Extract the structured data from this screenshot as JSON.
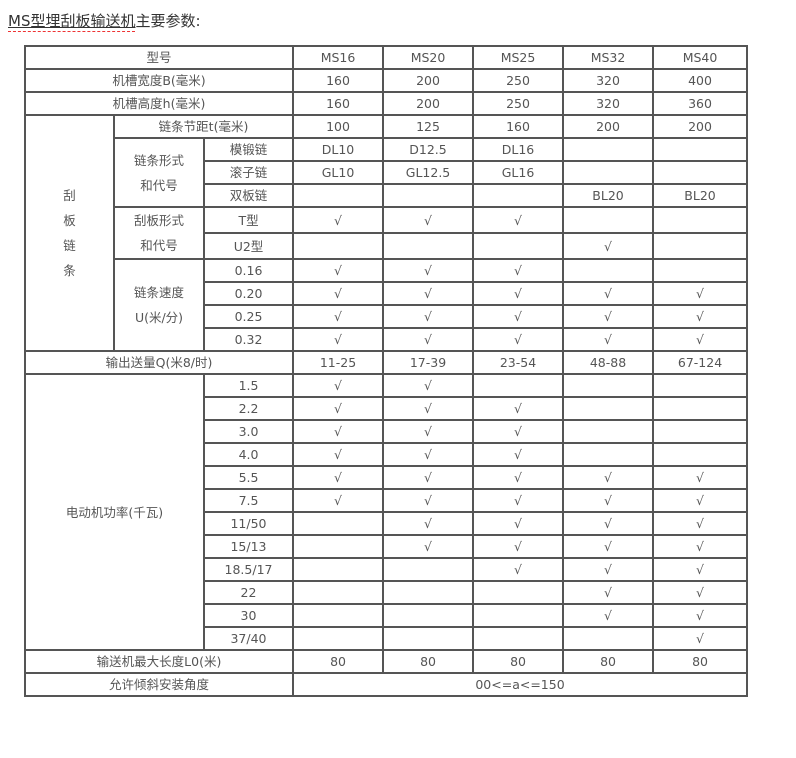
{
  "title": {
    "underlined": "MS型埋刮板输送机",
    "rest": "主要参数:"
  },
  "table": {
    "rows": [
      [
        {
          "t": "型号",
          "cs": 3
        },
        "MS16",
        "MS20",
        "MS25",
        "MS32",
        "MS40"
      ],
      [
        {
          "t": "机槽宽度B(毫米)",
          "cs": 3
        },
        "160",
        "200",
        "250",
        "320",
        "400"
      ],
      [
        {
          "t": "机槽高度h(毫米)",
          "cs": 3
        },
        "160",
        "200",
        "250",
        "320",
        "360"
      ],
      [
        {
          "t": "刮\n板\n链\n条",
          "rs": 10,
          "cls": "vert"
        },
        {
          "t": "链条节距t(毫米)",
          "cs": 2
        },
        "100",
        "125",
        "160",
        "200",
        "200"
      ],
      [
        {
          "t": "链条形式\n和代号",
          "rs": 3,
          "cls": "lead"
        },
        "模锻链",
        "DL10",
        "D12.5",
        "DL16",
        "",
        ""
      ],
      [
        "滚子链",
        "GL10",
        "GL12.5",
        "GL16",
        "",
        ""
      ],
      [
        "双板链",
        "",
        "",
        "",
        "BL20",
        "BL20"
      ],
      [
        {
          "t": "刮板形式\n和代号",
          "rs": 2,
          "cls": "lead"
        },
        "T型",
        "√",
        "√",
        "√",
        "",
        ""
      ],
      [
        "U2型",
        "",
        "",
        "",
        "√",
        ""
      ],
      [
        {
          "t": "链条速度\nU(米/分)",
          "rs": 4,
          "cls": "lead"
        },
        "0.16",
        "√",
        "√",
        "√",
        "",
        ""
      ],
      [
        "0.20",
        "√",
        "√",
        "√",
        "√",
        "√"
      ],
      [
        "0.25",
        "√",
        "√",
        "√",
        "√",
        "√"
      ],
      [
        "0.32",
        "√",
        "√",
        "√",
        "√",
        "√"
      ],
      [
        {
          "t": "输出送量Q(米8/时)",
          "cs": 3
        },
        "11-25",
        "17-39",
        "23-54",
        "48-88",
        "67-124"
      ],
      [
        {
          "t": "电动机功率(千瓦)",
          "cs": 2,
          "rs": 12
        },
        "1.5",
        "√",
        "√",
        "",
        "",
        ""
      ],
      [
        "2.2",
        "√",
        "√",
        "√",
        "",
        ""
      ],
      [
        "3.0",
        "√",
        "√",
        "√",
        "",
        ""
      ],
      [
        "4.0",
        "√",
        "√",
        "√",
        "",
        ""
      ],
      [
        "5.5",
        "√",
        "√",
        "√",
        "√",
        "√"
      ],
      [
        "7.5",
        "√",
        "√",
        "√",
        "√",
        "√"
      ],
      [
        "11/50",
        "",
        "√",
        "√",
        "√",
        "√"
      ],
      [
        "15/13",
        "",
        "√",
        "√",
        "√",
        "√"
      ],
      [
        "18.5/17",
        "",
        "",
        "√",
        "√",
        "√"
      ],
      [
        "22",
        "",
        "",
        "",
        "√",
        "√"
      ],
      [
        "30",
        "",
        "",
        "",
        "√",
        "√"
      ],
      [
        "37/40",
        "",
        "",
        "",
        "",
        "√"
      ],
      [
        {
          "t": "输送机最大长度L0(米)",
          "cs": 3
        },
        "80",
        "80",
        "80",
        "80",
        "80"
      ],
      [
        {
          "t": "允许倾斜安装角度",
          "cs": 3
        },
        {
          "t": "00<=a<=150",
          "cs": 5
        }
      ]
    ]
  }
}
